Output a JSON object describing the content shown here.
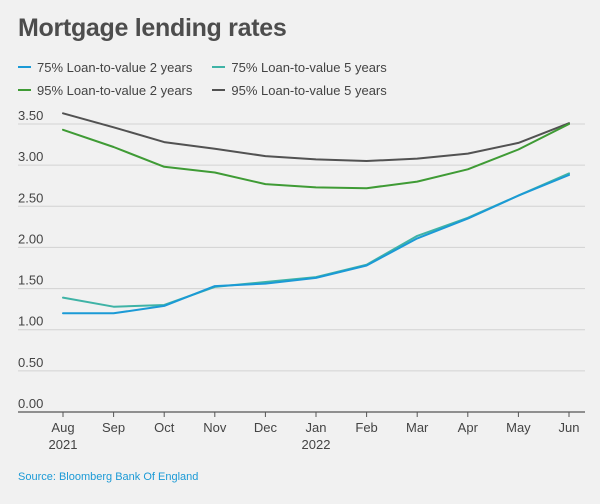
{
  "chart_data": {
    "type": "line",
    "title": "Mortgage lending rates",
    "categories": [
      "Aug",
      "Sep",
      "Oct",
      "Nov",
      "Dec",
      "Jan",
      "Feb",
      "Mar",
      "Apr",
      "May",
      "Jun"
    ],
    "year_labels": [
      {
        "index": 0,
        "label": "2021"
      },
      {
        "index": 5,
        "label": "2022"
      }
    ],
    "ylim": [
      0,
      3.5
    ],
    "yticks": [
      "0.00",
      "0.50",
      "1.00",
      "1.50",
      "2.00",
      "2.50",
      "3.00",
      "3.50"
    ],
    "grid": true,
    "legend_placement": "top-left",
    "series": [
      {
        "name": "75% Loan-to-value 2 years",
        "color": "#1b9ad6",
        "values": [
          1.2,
          1.2,
          1.29,
          1.53,
          1.56,
          1.63,
          1.78,
          2.11,
          2.35,
          2.63,
          2.88
        ]
      },
      {
        "name": "75% Loan-to-value 5 years",
        "color": "#3fb3a6",
        "values": [
          1.39,
          1.28,
          1.3,
          1.52,
          1.58,
          1.64,
          1.79,
          2.14,
          2.36,
          2.63,
          2.9
        ]
      },
      {
        "name": "95% Loan-to-value 2 years",
        "color": "#3f9b35",
        "values": [
          3.43,
          3.22,
          2.98,
          2.91,
          2.77,
          2.73,
          2.72,
          2.8,
          2.95,
          3.19,
          3.5
        ]
      },
      {
        "name": "95% Loan-to-value 5 years",
        "color": "#525252",
        "values": [
          3.63,
          3.46,
          3.28,
          3.2,
          3.11,
          3.07,
          3.05,
          3.08,
          3.14,
          3.27,
          3.51
        ]
      }
    ]
  },
  "source": "Source: Bloomberg Bank Of England"
}
